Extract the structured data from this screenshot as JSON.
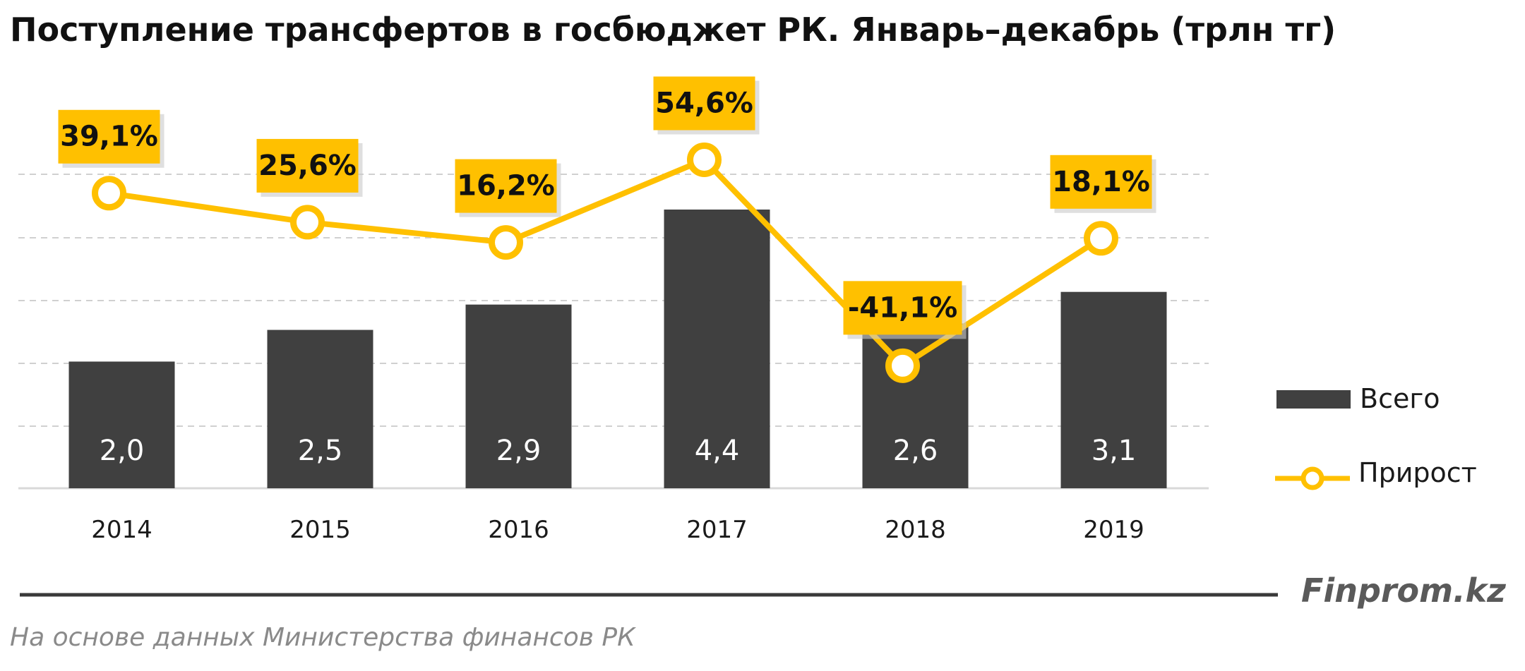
{
  "chart_data": {
    "type": "bar",
    "title": "Поступление трансфертов в госбюджет РК. Январь–декабрь (трлн тг)",
    "categories": [
      "2014",
      "2015",
      "2016",
      "2017",
      "2018",
      "2019"
    ],
    "series": [
      {
        "name": "Всего",
        "type": "bar",
        "values": [
          2.0,
          2.5,
          2.9,
          4.4,
          2.6,
          3.1
        ],
        "labels": [
          "2,0",
          "2,5",
          "2,9",
          "4,4",
          "2,6",
          "3,1"
        ],
        "color": "#404040"
      },
      {
        "name": "Прирост",
        "type": "line",
        "values": [
          39.1,
          25.6,
          16.2,
          54.6,
          -41.1,
          18.1
        ],
        "labels": [
          "39,1%",
          "25,6%",
          "16,2%",
          "54,6%",
          "-41,1%",
          "18,1%"
        ],
        "color": "#FFC000"
      }
    ],
    "ylim": [
      0,
      5
    ],
    "y2lim": [
      -80,
      90
    ],
    "grid": true,
    "gridlines": [
      1,
      2,
      3,
      4,
      5
    ],
    "legend_position": "right"
  },
  "footer": {
    "brand": "Finprom.kz",
    "source": "На основе данных Министерства финансов РК"
  },
  "colors": {
    "bar": "#404040",
    "line": "#FFC000",
    "grid": "#d0d0d0",
    "axis": "#d9d9d9",
    "footer_rule": "#3a3a3a"
  }
}
